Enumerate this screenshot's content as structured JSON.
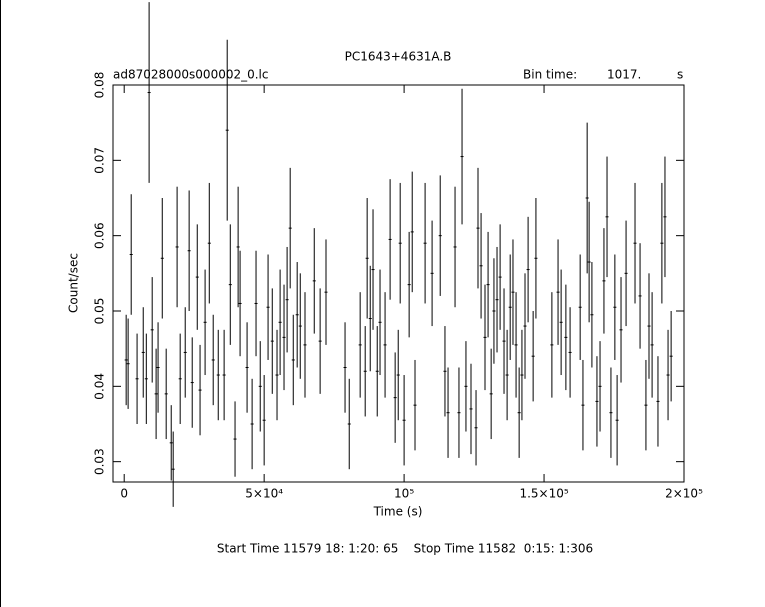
{
  "chart_data": {
    "type": "errorbar",
    "title": "PC1643+4631A.B",
    "file_label": "ad87028000s000002_0.lc",
    "bin_label": "Bin time:",
    "bin_value": "1017.",
    "bin_unit": "s",
    "xlabel": "Time (s)",
    "ylabel": "Count/sec",
    "footer": "Start Time 11579 18: 1:20: 65    Stop Time 11582  0:15: 1:306",
    "xlim": [
      -4000,
      200000
    ],
    "ylim": [
      0.0273,
      0.08
    ],
    "xticks": [
      0,
      {
        "value": 50000,
        "label": "5×10⁴"
      },
      {
        "value": 100000,
        "label": "10⁵"
      },
      {
        "value": 150000,
        "label": "1.5×10⁵"
      },
      {
        "value": 200000,
        "label": "2×10⁵"
      }
    ],
    "yticks": [
      0.03,
      0.04,
      0.05,
      0.06,
      0.07,
      0.08
    ],
    "color": "#000000",
    "x": [
      700,
      1400,
      2500,
      4600,
      6800,
      7900,
      8900,
      10000,
      11400,
      12100,
      13600,
      15000,
      16800,
      17500,
      18900,
      20000,
      21800,
      23200,
      24300,
      26100,
      27100,
      28900,
      30400,
      31800,
      33600,
      35700,
      36800,
      37900,
      39600,
      40700,
      41400,
      43900,
      45700,
      47100,
      48600,
      50000,
      51400,
      52900,
      54600,
      55700,
      57100,
      58200,
      59300,
      60400,
      61800,
      62900,
      64600,
      67900,
      70000,
      72100,
      78900,
      80400,
      84300,
      86100,
      86800,
      87900,
      88900,
      90400,
      91400,
      93200,
      95000,
      96800,
      97900,
      98600,
      100000,
      101800,
      102900,
      103900,
      107500,
      110000,
      112900,
      114600,
      115700,
      118200,
      119600,
      120700,
      122100,
      123900,
      125700,
      126400,
      127500,
      128900,
      130000,
      131100,
      132100,
      133200,
      134300,
      135700,
      136800,
      137900,
      138900,
      140000,
      141100,
      142100,
      143200,
      144300,
      146100,
      147100,
      152800,
      155000,
      156100,
      157800,
      159300,
      162900,
      163900,
      165400,
      166100,
      167100,
      168900,
      170000,
      171400,
      172500,
      173900,
      175300,
      176100,
      177500,
      179300,
      182500,
      184300,
      186400,
      187500,
      188600,
      190700,
      192100,
      193200,
      194300,
      195400
    ],
    "values": [
      0.0435,
      0.043,
      0.0575,
      0.041,
      0.0445,
      0.041,
      0.079,
      0.0475,
      0.039,
      0.0425,
      0.057,
      0.039,
      0.0325,
      0.029,
      0.0585,
      0.041,
      0.0445,
      0.058,
      0.0405,
      0.0545,
      0.0395,
      0.0485,
      0.059,
      0.0435,
      0.0415,
      0.0415,
      0.074,
      0.0535,
      0.033,
      0.0585,
      0.051,
      0.0425,
      0.035,
      0.051,
      0.04,
      0.0355,
      0.0505,
      0.046,
      0.0415,
      0.0485,
      0.0465,
      0.0515,
      0.061,
      0.0435,
      0.0495,
      0.048,
      0.0455,
      0.054,
      0.046,
      0.0525,
      0.0425,
      0.035,
      0.0455,
      0.042,
      0.057,
      0.049,
      0.0555,
      0.042,
      0.0485,
      0.0455,
      0.0595,
      0.0385,
      0.0415,
      0.059,
      0.0355,
      0.0535,
      0.0605,
      0.0375,
      0.059,
      0.055,
      0.06,
      0.042,
      0.0365,
      0.0585,
      0.0365,
      0.0705,
      0.04,
      0.037,
      0.0345,
      0.061,
      0.056,
      0.0465,
      0.0535,
      0.039,
      0.05,
      0.0515,
      0.0545,
      0.046,
      0.0415,
      0.0505,
      0.0525,
      0.0455,
      0.0365,
      0.0415,
      0.048,
      0.0555,
      0.044,
      0.057,
      0.0455,
      0.0525,
      0.0485,
      0.0465,
      0.0445,
      0.0505,
      0.0375,
      0.065,
      0.0565,
      0.0495,
      0.038,
      0.04,
      0.054,
      0.0625,
      0.0365,
      0.0505,
      0.0355,
      0.0475,
      0.055,
      0.059,
      0.052,
      0.0375,
      0.048,
      0.0455,
      0.038,
      0.059,
      0.0625,
      0.0415,
      0.044
    ],
    "errors": [
      0.006,
      0.006,
      0.008,
      0.006,
      0.006,
      0.006,
      0.012,
      0.007,
      0.006,
      0.006,
      0.008,
      0.006,
      0.005,
      0.005,
      0.008,
      0.006,
      0.006,
      0.008,
      0.006,
      0.007,
      0.006,
      0.007,
      0.008,
      0.006,
      0.006,
      0.006,
      0.012,
      0.008,
      0.005,
      0.008,
      0.007,
      0.006,
      0.006,
      0.007,
      0.006,
      0.006,
      0.007,
      0.007,
      0.006,
      0.007,
      0.007,
      0.007,
      0.008,
      0.006,
      0.007,
      0.007,
      0.007,
      0.007,
      0.007,
      0.007,
      0.006,
      0.006,
      0.007,
      0.006,
      0.008,
      0.007,
      0.008,
      0.006,
      0.007,
      0.007,
      0.008,
      0.006,
      0.006,
      0.008,
      0.006,
      0.007,
      0.008,
      0.006,
      0.008,
      0.007,
      0.008,
      0.006,
      0.006,
      0.008,
      0.006,
      0.009,
      0.006,
      0.006,
      0.005,
      0.008,
      0.007,
      0.007,
      0.007,
      0.006,
      0.007,
      0.007,
      0.007,
      0.007,
      0.006,
      0.007,
      0.007,
      0.007,
      0.006,
      0.006,
      0.007,
      0.007,
      0.006,
      0.008,
      0.007,
      0.007,
      0.007,
      0.007,
      0.006,
      0.007,
      0.006,
      0.01,
      0.008,
      0.007,
      0.006,
      0.006,
      0.007,
      0.008,
      0.006,
      0.007,
      0.006,
      0.007,
      0.007,
      0.008,
      0.007,
      0.006,
      0.007,
      0.007,
      0.006,
      0.008,
      0.008,
      0.006,
      0.006
    ]
  }
}
